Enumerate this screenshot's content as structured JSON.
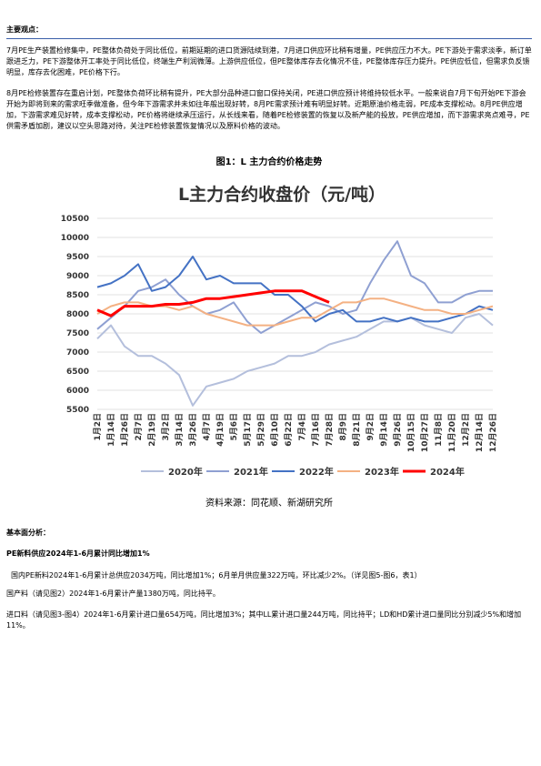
{
  "section1": {
    "heading": "主要观点：",
    "paragraphs": [
      "7月PE生产装置检修集中，PE整体负荷处于同比低位，前期延期的进口货源陆续到港，7月进口供应环比稍有增量，PE供应压力不大。PE下游处于需求淡季，新订单跟进乏力，PE下游整体开工率处于同比低位，终端生产利润微薄。上游供应低位，但PE整体库存去化情况不佳，PE整体库存压力提升。PE供应低位，但需求负反馈明显，库存去化困难，PE价格下行。",
      "8月PE检修装置存在重启计划，PE整体负荷环比稍有提升，PE大部分品种进口窗口保持关闭，PE进口供应预计将维持较低水平。一般来说自7月下旬开始PE下游会开始为即将到来的需求旺季做准备，但今年下游需求并未如往年般出现好转，8月PE需求预计难有明显好转。近期原油价格走弱，PE成本支撑松动。8月PE供应增加，下游需求难见好转，成本支撑松动，PE价格将继续承压运行，从长线来看，随着PE检修装置的恢复以及新产能的投放，PE供应增加，而下游需求亮点难寻，PE供需矛盾加剧，建议以空头思路对待，关注PE检修装置恢复情况以及原料价格的波动。"
    ]
  },
  "figure_title": "图1：L 主力合约价格走势",
  "chart_data": {
    "type": "line",
    "title": "L主力合约收盘价（元/吨）",
    "categories": [
      "1月2日",
      "1月14日",
      "1月26日",
      "2月7日",
      "2月19日",
      "3月2日",
      "3月14日",
      "3月26日",
      "4月7日",
      "4月19日",
      "5月6日",
      "5月17日",
      "5月29日",
      "6月10日",
      "6月22日",
      "7月4日",
      "7月16日",
      "7月28日",
      "8月9日",
      "8月21日",
      "9月2日",
      "9月14日",
      "9月26日",
      "10月15日",
      "10月27日",
      "11月8日",
      "11月20日",
      "12月2日",
      "12月14日",
      "12月26日"
    ],
    "ylim": [
      5500,
      10500
    ],
    "yticks": [
      5500,
      6000,
      6500,
      7000,
      7500,
      8000,
      8500,
      9000,
      9500,
      10000,
      10500
    ],
    "grid": true,
    "series": [
      {
        "name": "2020年",
        "color": "#b4bfdc",
        "values": [
          7350,
          7700,
          7150,
          6900,
          6900,
          6700,
          6400,
          5600,
          6100,
          6200,
          6300,
          6500,
          6600,
          6700,
          6900,
          6900,
          7000,
          7200,
          7300,
          7400,
          7600,
          7800,
          7800,
          7900,
          7700,
          7600,
          7500,
          7900,
          8000,
          7700
        ]
      },
      {
        "name": "2021年",
        "color": "#8fa0d2",
        "values": [
          7600,
          7900,
          8200,
          8600,
          8700,
          8900,
          8500,
          8200,
          8000,
          8100,
          8300,
          7800,
          7500,
          7700,
          7900,
          8100,
          8300,
          8200,
          8000,
          8100,
          8800,
          9400,
          9900,
          9000,
          8800,
          8300,
          8300,
          8500,
          8600,
          8600
        ]
      },
      {
        "name": "2022年",
        "color": "#4472c4",
        "values": [
          8700,
          8800,
          9000,
          9300,
          8600,
          8700,
          9000,
          9500,
          8900,
          9000,
          8800,
          8800,
          8800,
          8500,
          8500,
          8200,
          7800,
          8000,
          8100,
          7800,
          7800,
          7900,
          7800,
          7900,
          7800,
          7800,
          7900,
          8000,
          8200,
          8100
        ]
      },
      {
        "name": "2023年",
        "color": "#f4b183",
        "values": [
          8000,
          8200,
          8300,
          8300,
          8200,
          8200,
          8100,
          8200,
          8000,
          7900,
          7800,
          7700,
          7700,
          7700,
          7800,
          7900,
          7900,
          8100,
          8300,
          8300,
          8400,
          8400,
          8300,
          8200,
          8100,
          8100,
          8000,
          8000,
          8100,
          8200
        ]
      },
      {
        "name": "2024年",
        "color": "#ff0000",
        "values": [
          8100,
          7950,
          8200,
          8200,
          8200,
          8250,
          8250,
          8300,
          8400,
          8400,
          8450,
          8500,
          8550,
          8600,
          8600,
          8600,
          8450,
          8300,
          null,
          null,
          null,
          null,
          null,
          null,
          null,
          null,
          null,
          null,
          null,
          null
        ]
      }
    ]
  },
  "source": "资料来源：同花顺、新湖研究所",
  "section2": {
    "heading": "基本面分析：",
    "subheading": "PE新料供应2024年1-6月累计同比增加1%",
    "paragraphs": [
      "国内PE新料2024年1-6月累计总供应2034万吨，同比增加1%；6月单月供应量322万吨，环比减少2%。（详见图5-图6，表1）",
      "国产料（请见图2）2024年1-6月累计产量1380万吨，同比持平。",
      "进口料（请见图3-图4）2024年1-6月累计进口量654万吨，同比增加3%；其中LL累计进口量244万吨，同比持平；LD和HD累计进口量同比分别减少5%和增加11%。"
    ]
  }
}
